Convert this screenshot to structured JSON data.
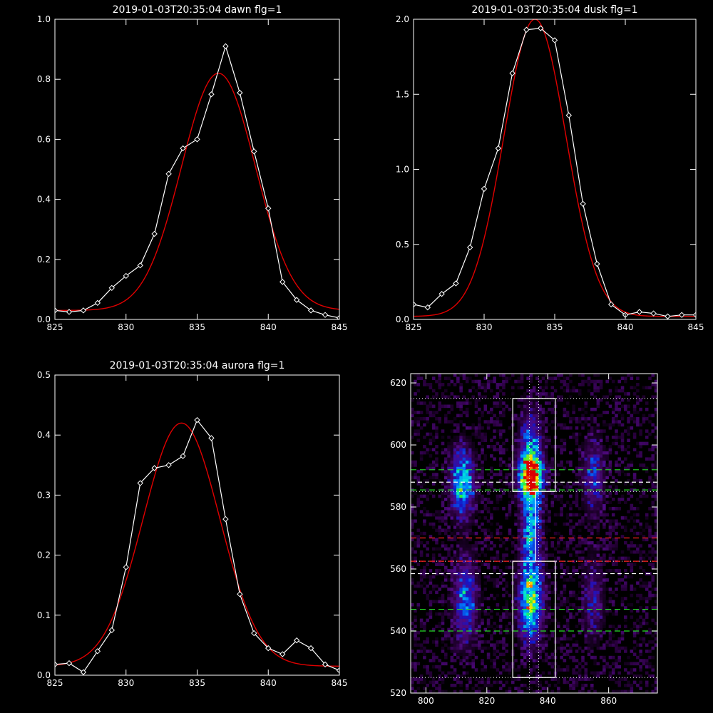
{
  "chart_data": [
    {
      "type": "line",
      "title": "2019-01-03T20:35:04 dawn flg=1",
      "xlim": [
        825,
        845
      ],
      "ylim": [
        0,
        1.0
      ],
      "xticks": [
        "825",
        "830",
        "835",
        "840",
        "845"
      ],
      "yticks": [
        "0.0",
        "0.2",
        "0.4",
        "0.6",
        "0.8",
        "1.0"
      ],
      "xtick_values": [
        825,
        830,
        835,
        840,
        845
      ],
      "ytick_values": [
        0,
        0.2,
        0.4,
        0.6,
        0.8,
        1.0
      ],
      "series": [
        {
          "style": "white line with diamond markers",
          "x": [
            825,
            826,
            827,
            828,
            829,
            830,
            831,
            832,
            833,
            834,
            835,
            836,
            837,
            838,
            839,
            840,
            841,
            842,
            843,
            844,
            845
          ],
          "y": [
            0.03,
            0.025,
            0.03,
            0.055,
            0.105,
            0.145,
            0.18,
            0.285,
            0.485,
            0.57,
            0.6,
            0.75,
            0.91,
            0.755,
            0.56,
            0.37,
            0.125,
            0.065,
            0.03,
            0.015,
            0.005
          ]
        },
        {
          "style": "red gaussian fit",
          "gauss": {
            "amp": 0.79,
            "center": 836.5,
            "sigma": 2.6,
            "offset": 0.03
          }
        }
      ]
    },
    {
      "type": "line",
      "title": "2019-01-03T20:35:04 dusk flg=1",
      "xlim": [
        825,
        845
      ],
      "ylim": [
        0,
        2.0
      ],
      "xticks": [
        "825",
        "830",
        "835",
        "840",
        "845"
      ],
      "yticks": [
        "0.0",
        "0.5",
        "1.0",
        "1.5",
        "2.0"
      ],
      "xtick_values": [
        825,
        830,
        835,
        840,
        845
      ],
      "ytick_values": [
        0,
        0.5,
        1.0,
        1.5,
        2.0
      ],
      "series": [
        {
          "style": "white line with diamond markers",
          "x": [
            825,
            826,
            827,
            828,
            829,
            830,
            831,
            832,
            833,
            834,
            835,
            836,
            837,
            838,
            839,
            840,
            841,
            842,
            843,
            844,
            845
          ],
          "y": [
            0.1,
            0.08,
            0.17,
            0.24,
            0.48,
            0.87,
            1.14,
            1.64,
            1.93,
            1.94,
            1.86,
            1.36,
            0.77,
            0.37,
            0.1,
            0.03,
            0.05,
            0.04,
            0.02,
            0.03,
            0.03
          ]
        },
        {
          "style": "red gaussian fit",
          "gauss": {
            "amp": 1.98,
            "center": 833.6,
            "sigma": 2.2,
            "offset": 0.02
          }
        }
      ]
    },
    {
      "type": "line",
      "title": "2019-01-03T20:35:04 aurora flg=1",
      "xlim": [
        825,
        845
      ],
      "ylim": [
        0,
        0.5
      ],
      "xticks": [
        "825",
        "830",
        "835",
        "840",
        "845"
      ],
      "yticks": [
        "0.0",
        "0.1",
        "0.2",
        "0.3",
        "0.4",
        "0.5"
      ],
      "xtick_values": [
        825,
        830,
        835,
        840,
        845
      ],
      "ytick_values": [
        0,
        0.1,
        0.2,
        0.3,
        0.4,
        0.5
      ],
      "series": [
        {
          "style": "white line with diamond markers",
          "x": [
            825,
            826,
            827,
            828,
            829,
            830,
            831,
            832,
            833,
            834,
            835,
            836,
            837,
            838,
            839,
            840,
            841,
            842,
            843,
            844,
            845
          ],
          "y": [
            0.018,
            0.02,
            0.005,
            0.04,
            0.075,
            0.18,
            0.32,
            0.345,
            0.35,
            0.365,
            0.425,
            0.395,
            0.26,
            0.135,
            0.07,
            0.045,
            0.035,
            0.058,
            0.045,
            0.018,
            0.008
          ]
        },
        {
          "style": "red gaussian fit",
          "gauss": {
            "amp": 0.405,
            "center": 833.9,
            "sigma": 2.7,
            "offset": 0.015
          }
        }
      ]
    },
    {
      "type": "heatmap",
      "title": "",
      "xlim": [
        795,
        876
      ],
      "ylim": [
        520,
        623
      ],
      "xticks": [
        "800",
        "820",
        "840",
        "860"
      ],
      "yticks": [
        "520",
        "540",
        "560",
        "580",
        "600",
        "620"
      ],
      "xtick_values": [
        800,
        820,
        840,
        860
      ],
      "ytick_values": [
        520,
        540,
        560,
        580,
        600,
        620
      ],
      "blobs": [
        {
          "x": 812,
          "y": 588,
          "sx": 2.6,
          "sy": 7,
          "amp": 0.6
        },
        {
          "x": 813,
          "y": 550,
          "sx": 2.6,
          "sy": 9,
          "amp": 0.42
        },
        {
          "x": 834.5,
          "y": 590,
          "sx": 2.6,
          "sy": 5,
          "amp": 1.0
        },
        {
          "x": 834.5,
          "y": 572,
          "sx": 2.2,
          "sy": 10,
          "amp": 0.5
        },
        {
          "x": 834.5,
          "y": 549,
          "sx": 2.6,
          "sy": 8,
          "amp": 0.68
        },
        {
          "x": 834.5,
          "y": 600,
          "sx": 2.4,
          "sy": 8,
          "amp": 0.35
        },
        {
          "x": 855,
          "y": 590,
          "sx": 2.4,
          "sy": 8,
          "amp": 0.3
        },
        {
          "x": 855,
          "y": 550,
          "sx": 2.4,
          "sy": 9,
          "amp": 0.22
        }
      ],
      "boxes": [
        {
          "x0": 828.5,
          "x1": 842.5,
          "y0": 585,
          "y1": 615
        },
        {
          "x0": 828.5,
          "x1": 842.5,
          "y0": 525,
          "y1": 562.5
        }
      ],
      "vertical_lines": [
        {
          "x": 834,
          "style": "white dotted"
        },
        {
          "x": 837,
          "style": "white dotted"
        },
        {
          "x": 836,
          "y0": 562.5,
          "y1": 585,
          "style": "white solid"
        }
      ],
      "horizontal_lines": [
        {
          "y": 615,
          "style": "white dotted"
        },
        {
          "y": 585,
          "style": "white dotted"
        },
        {
          "y": 562.5,
          "style": "white dotted"
        },
        {
          "y": 525,
          "style": "white dotted"
        },
        {
          "y": 592,
          "style": "green dashed"
        },
        {
          "y": 585.5,
          "style": "green dashed"
        },
        {
          "y": 547,
          "style": "green dashed"
        },
        {
          "y": 540,
          "style": "green dashed"
        },
        {
          "y": 588,
          "style": "white dashed"
        },
        {
          "y": 558.5,
          "style": "white dashed"
        },
        {
          "y": 570,
          "style": "red dashed"
        },
        {
          "y": 562.5,
          "style": "red dashed"
        }
      ]
    }
  ],
  "colors": {
    "background": "#000000",
    "axes": "#ffffff",
    "data_line": "#ffffff",
    "fit_line": "#e00000",
    "green_line": "#22dd22",
    "red_line": "#ff2020"
  }
}
